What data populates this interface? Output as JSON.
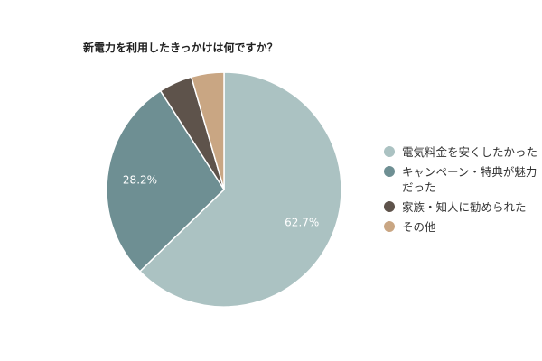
{
  "chart_data": {
    "type": "pie",
    "title": "新電力を利用したきっかけは何ですか？",
    "slices": [
      {
        "label": "電気料金を安くしたかった",
        "value": 62.7,
        "value_label": "62.7%",
        "color": "#abc2c2"
      },
      {
        "label": "キャンペーン・特典が魅力だった",
        "value": 28.2,
        "value_label": "28.2%",
        "color": "#6e8f93"
      },
      {
        "label": "家族・知人に勧められた",
        "value": 4.6,
        "value_label": "",
        "color": "#5e534b"
      },
      {
        "label": "その他",
        "value": 4.5,
        "value_label": "",
        "color": "#c9a683"
      }
    ],
    "legend_position": "right"
  }
}
